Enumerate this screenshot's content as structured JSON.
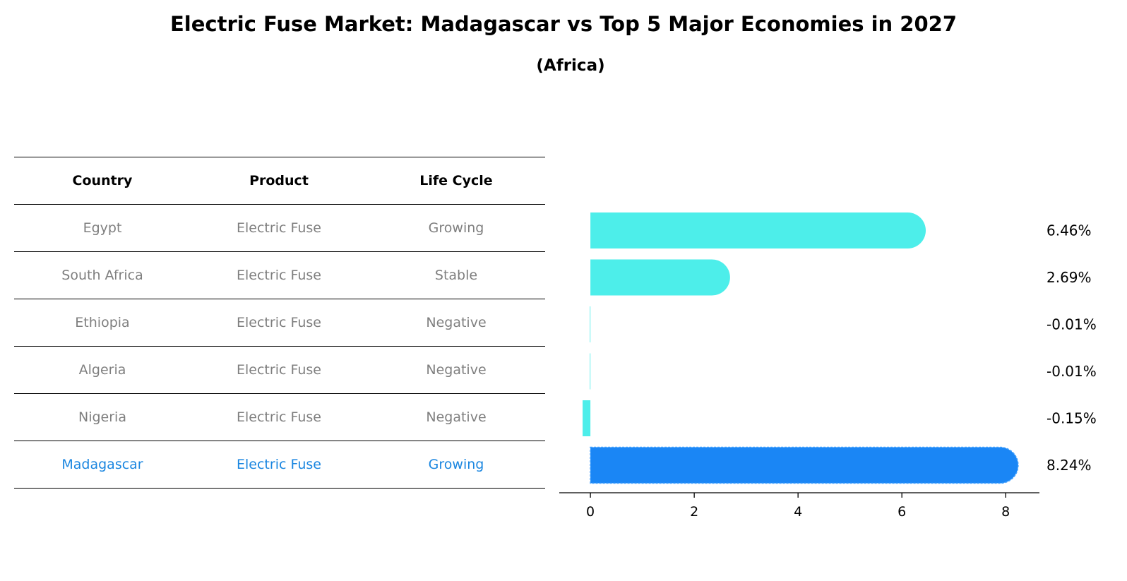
{
  "table": {
    "headers": [
      "Country",
      "Product",
      "Life Cycle"
    ],
    "rows": [
      [
        "Egypt",
        "Electric Fuse",
        "Growing"
      ],
      [
        "South Africa",
        "Electric Fuse",
        "Stable"
      ],
      [
        "Ethiopia",
        "Electric Fuse",
        "Negative"
      ],
      [
        "Algeria",
        "Electric Fuse",
        "Negative"
      ],
      [
        "Nigeria",
        "Electric Fuse",
        "Negative"
      ],
      [
        "Madagascar",
        "Electric Fuse",
        "Growing"
      ]
    ]
  },
  "chart_data": {
    "type": "bar",
    "orientation": "horizontal",
    "title": "Electric Fuse Market: Madagascar vs Top 5 Major Economies in 2027",
    "subtitle": "(Africa)",
    "categories": [
      "Egypt",
      "South Africa",
      "Ethiopia",
      "Algeria",
      "Nigeria",
      "Madagascar"
    ],
    "values": [
      6.46,
      2.69,
      -0.01,
      -0.01,
      -0.15,
      8.24
    ],
    "value_labels": [
      "6.46%",
      "2.69%",
      "-0.01%",
      "-0.01%",
      "-0.15%",
      "8.24%"
    ],
    "xlim": [
      -0.6,
      8.65
    ],
    "xticks": [
      0,
      2,
      4,
      6,
      8
    ],
    "highlight": "Madagascar",
    "colors": {
      "default": "#4deeea",
      "highlight": "#1a86f5"
    }
  }
}
